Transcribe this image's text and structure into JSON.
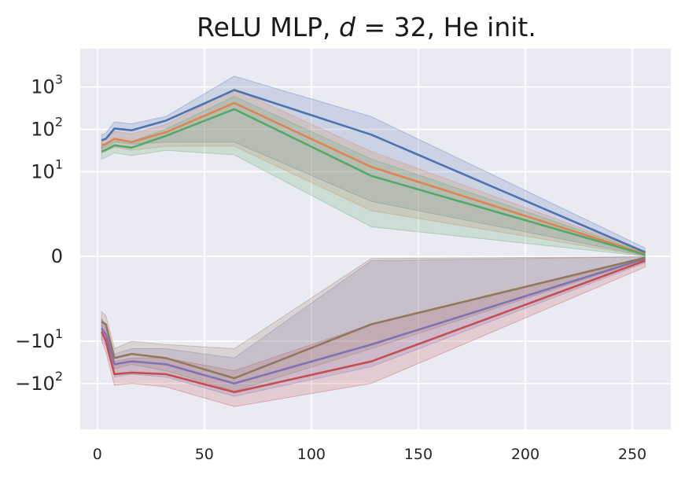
{
  "chart_data": {
    "type": "line",
    "title": {
      "prefix": "ReLU MLP, ",
      "var": "d",
      "eq": " = 32, He init."
    },
    "xlabel": "",
    "ylabel": "",
    "xlim": [
      -8,
      268
    ],
    "ylim": [
      -1200,
      8000
    ],
    "yscale": "symlog",
    "symlog_linthresh": 1,
    "grid": true,
    "legend": "none",
    "background": "#eaeaf2",
    "grid_color": "#ffffff",
    "x_ticks": [
      {
        "value": 0,
        "label": "0"
      },
      {
        "value": 50,
        "label": "50"
      },
      {
        "value": 100,
        "label": "100"
      },
      {
        "value": 150,
        "label": "150"
      },
      {
        "value": 200,
        "label": "200"
      },
      {
        "value": 250,
        "label": "250"
      }
    ],
    "y_ticks": [
      {
        "value": 1000,
        "base": "10",
        "exp": "3"
      },
      {
        "value": 100,
        "base": "10",
        "exp": "2"
      },
      {
        "value": 10,
        "base": "10",
        "exp": "1"
      },
      {
        "value": 0,
        "base": "0",
        "exp": ""
      },
      {
        "value": -10,
        "base": "−10",
        "exp": "1"
      },
      {
        "value": -100,
        "base": "−10",
        "exp": "2"
      }
    ],
    "x": [
      2,
      4,
      8,
      16,
      32,
      64,
      128,
      256
    ],
    "series": [
      {
        "color": "#4c72b0",
        "values": [
          55,
          60,
          105,
          95,
          160,
          850,
          75,
          0.1
        ],
        "lower": [
          35,
          38,
          50,
          45,
          50,
          50,
          2,
          0.02
        ],
        "upper": [
          75,
          82,
          150,
          135,
          200,
          1800,
          200,
          0.2
        ]
      },
      {
        "color": "#dd8452",
        "values": [
          42,
          45,
          60,
          50,
          85,
          420,
          13,
          0.06
        ],
        "lower": [
          28,
          30,
          38,
          32,
          40,
          40,
          1.2,
          0.01
        ],
        "upper": [
          58,
          60,
          90,
          78,
          130,
          900,
          30,
          0.12
        ]
      },
      {
        "color": "#55a868",
        "values": [
          30,
          33,
          42,
          37,
          70,
          300,
          8,
          0.04
        ],
        "lower": [
          20,
          22,
          28,
          24,
          32,
          25,
          0.7,
          0.008
        ],
        "upper": [
          40,
          44,
          60,
          52,
          100,
          600,
          20,
          0.1
        ]
      },
      {
        "color": "#c44e52",
        "values": [
          -6,
          -10,
          -60,
          -55,
          -60,
          -160,
          -30,
          -0.1
        ],
        "lower": [
          -10,
          -18,
          -110,
          -100,
          -120,
          -350,
          -100,
          -0.25
        ],
        "upper": [
          -3,
          -5,
          -30,
          -25,
          -25,
          -50,
          -4,
          -0.02
        ]
      },
      {
        "color": "#8172b3",
        "values": [
          -5,
          -7,
          -35,
          -30,
          -35,
          -100,
          -12,
          -0.05
        ],
        "lower": [
          -9,
          -13,
          -70,
          -60,
          -70,
          -200,
          -40,
          -0.15
        ],
        "upper": [
          -3,
          -4,
          -20,
          -15,
          -15,
          -25,
          -0.1,
          -0.01
        ]
      },
      {
        "color": "#937860",
        "values": [
          -3.5,
          -4,
          -25,
          -20,
          -25,
          -75,
          -4,
          -0.03
        ],
        "lower": [
          -6,
          -8,
          -45,
          -35,
          -50,
          -150,
          -15,
          -0.08
        ],
        "upper": [
          -2,
          -2.5,
          -15,
          -10,
          -12,
          -15,
          -0.05,
          -0.005
        ]
      }
    ]
  }
}
